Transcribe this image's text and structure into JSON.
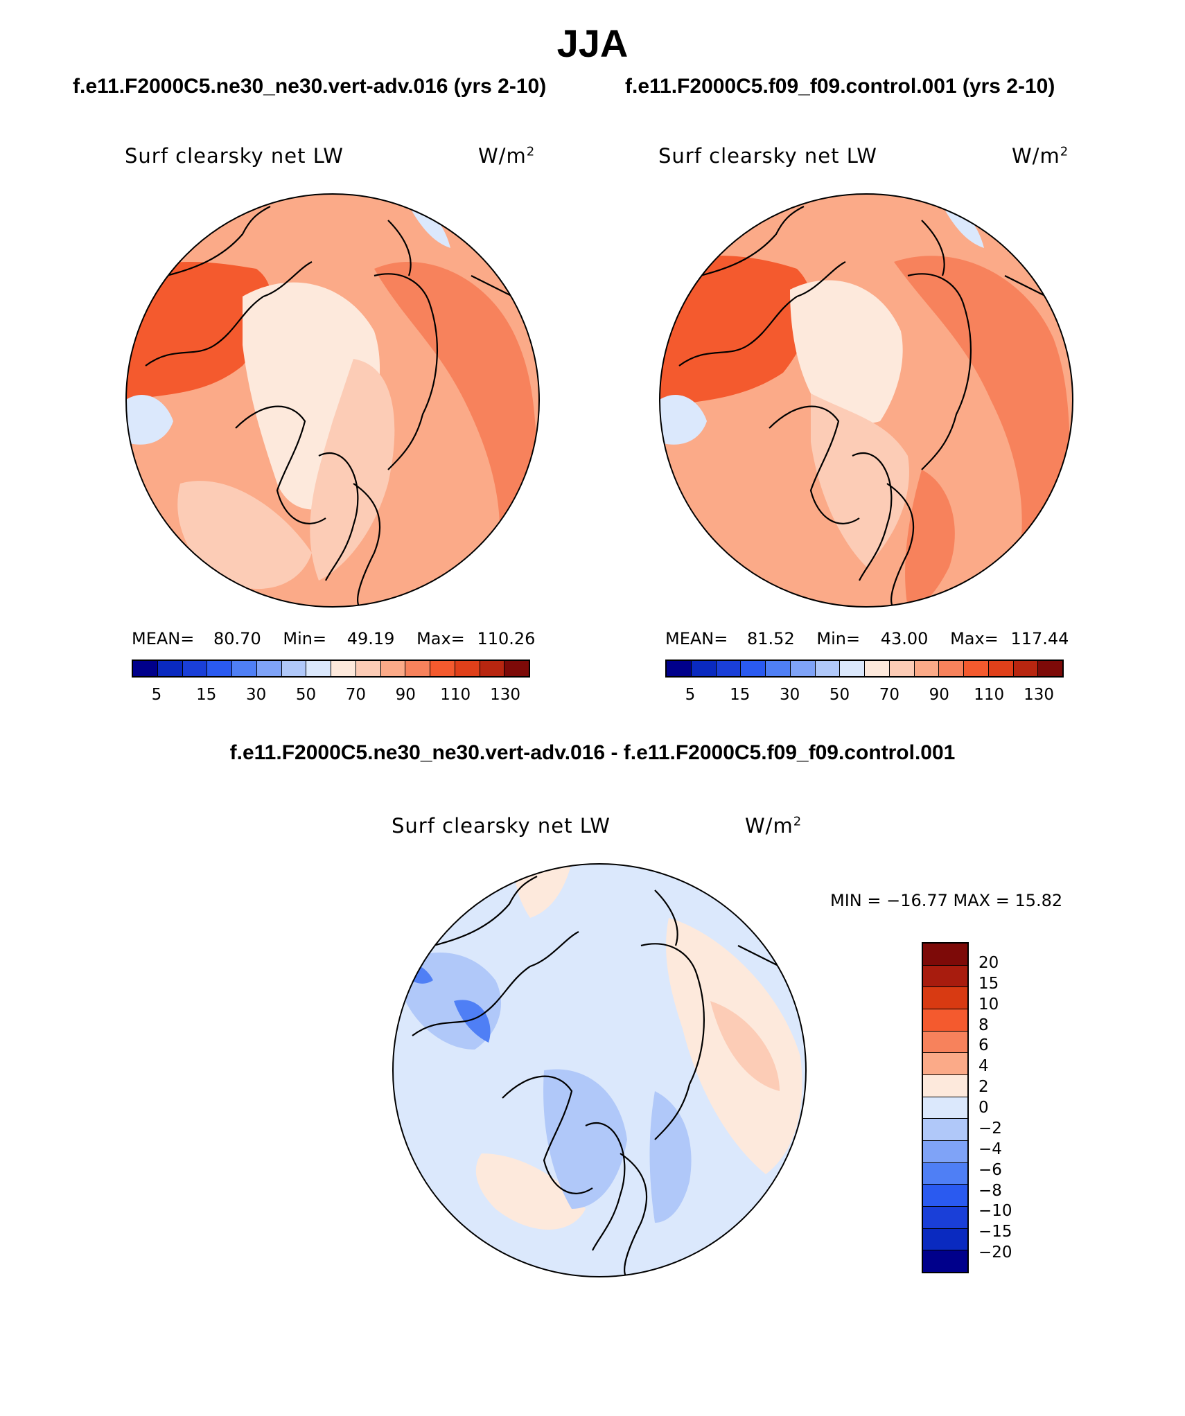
{
  "page": {
    "title": "JJA",
    "left_case_title": "f.e11.F2000C5.ne30_ne30.vert-adv.016 (yrs 2-10)",
    "right_case_title": "f.e11.F2000C5.f09_f09.control.001 (yrs 2-10)",
    "diff_title": "f.e11.F2000C5.ne30_ne30.vert-adv.016 - f.e11.F2000C5.f09_f09.control.001"
  },
  "panels": {
    "left": {
      "variable": "Surf clearsky net LW",
      "units_base": "W/m",
      "units_exp": "2",
      "mean_label": "MEAN=",
      "mean": "80.70",
      "min_label": "Min=",
      "min": "49.19",
      "max_label": "Max=",
      "max": "110.26"
    },
    "right": {
      "variable": "Surf clearsky net LW",
      "units_base": "W/m",
      "units_exp": "2",
      "mean_label": "MEAN=",
      "mean": "81.52",
      "min_label": "Min=",
      "min": "43.00",
      "max_label": "Max=",
      "max": "117.44"
    },
    "diff": {
      "variable": "Surf clearsky net LW",
      "units_base": "W/m",
      "units_exp": "2",
      "minmax_text": "MIN = −16.77 MAX =   15.82"
    }
  },
  "colorbars": {
    "abs_colors": [
      "#00008b",
      "#0a2ac0",
      "#1a3fd8",
      "#2a5af0",
      "#4f7ff5",
      "#7fa3f7",
      "#b0c8f9",
      "#dbe8fc",
      "#fde9dc",
      "#fcccb6",
      "#fbaa88",
      "#f7825c",
      "#f45a2e",
      "#e0401a",
      "#b82610",
      "#7d0a08"
    ],
    "abs_ticks": [
      "5",
      "15",
      "30",
      "50",
      "70",
      "90",
      "110",
      "130"
    ],
    "diff_colors": [
      "#7d0a08",
      "#a81c0e",
      "#d83a12",
      "#f45a2e",
      "#f7825c",
      "#fbaa88",
      "#fde9dc",
      "#dbe8fc",
      "#b0c8f9",
      "#7fa3f7",
      "#4f7ff5",
      "#2a5af0",
      "#1a3fd8",
      "#0a2ac0",
      "#00008b"
    ],
    "diff_ticks": [
      "20",
      "15",
      "10",
      "8",
      "6",
      "4",
      "2",
      "0",
      "−2",
      "−4",
      "−6",
      "−8",
      "−10",
      "−15",
      "−20"
    ]
  },
  "map_colors": {
    "abs_base": "#fbaa88",
    "abs_light": "#fde9dc",
    "abs_mid": "#fcccb6",
    "abs_dark": "#f7825c",
    "abs_hot": "#f45a2e",
    "abs_cool": "#dbe8fc",
    "diff_base": "#dbe8fc",
    "diff_mid": "#b0c8f9",
    "diff_deep": "#4f7ff5",
    "diff_warm": "#fde9dc",
    "diff_warm2": "#fcccb6"
  }
}
